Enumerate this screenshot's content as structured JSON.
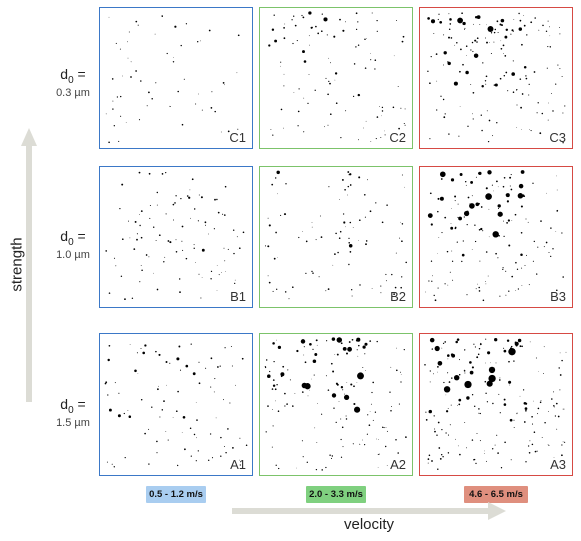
{
  "colors": {
    "low": "#3b78c7",
    "mid": "#7cc36a",
    "high": "#d64a44",
    "low_badge": "#a9cdf0",
    "mid_badge": "#7fd07f",
    "high_badge": "#df8f7e",
    "arrow": "#dcdcd5"
  },
  "rows": [
    {
      "prefix": "d",
      "sub": "0",
      "eq": " =",
      "size": "0.3 µm"
    },
    {
      "prefix": "d",
      "sub": "0",
      "eq": " =",
      "size": "1.0 µm"
    },
    {
      "prefix": "d",
      "sub": "0",
      "eq": " =",
      "size": "1.5 µm"
    }
  ],
  "panels": [
    {
      "label": "C1",
      "color": "low",
      "density": 0.15,
      "clusters": 0.1
    },
    {
      "label": "C2",
      "color": "mid",
      "density": 0.35,
      "clusters": 0.4
    },
    {
      "label": "C3",
      "color": "high",
      "density": 0.6,
      "clusters": 0.8
    },
    {
      "label": "B1",
      "color": "low",
      "density": 0.35,
      "clusters": 0.3
    },
    {
      "label": "B2",
      "color": "mid",
      "density": 0.3,
      "clusters": 0.35
    },
    {
      "label": "B3",
      "color": "high",
      "density": 0.55,
      "clusters": 0.9
    },
    {
      "label": "A1",
      "color": "low",
      "density": 0.3,
      "clusters": 0.35
    },
    {
      "label": "A2",
      "color": "mid",
      "density": 0.55,
      "clusters": 0.85
    },
    {
      "label": "A3",
      "color": "high",
      "density": 0.75,
      "clusters": 1.0
    }
  ],
  "velocity_bins": [
    "0.5 - 1.2 m/s",
    "2.0 - 3.3 m/s",
    "4.6 - 6.5 m/s"
  ],
  "axis": {
    "y_label": "strength",
    "x_label": "velocity"
  }
}
